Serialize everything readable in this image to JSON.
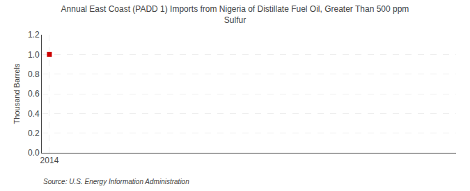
{
  "chart_data": {
    "type": "scatter",
    "title": "Annual East Coast (PADD 1) Imports from Nigeria of Distillate Fuel Oil, Greater Than 500 ppm\nSulfur",
    "ylabel": "Thousand Barrels",
    "source": "Source: U.S. Energy Information Administration",
    "x": [
      2014
    ],
    "values": [
      1.0
    ],
    "color": "#cc0000",
    "marker": "square",
    "xlim": [
      2013.7,
      2030.0
    ],
    "ylim": [
      0.0,
      1.2
    ],
    "xticks": [
      2014
    ],
    "yticks": [
      {
        "value": 0.0,
        "label": "0.0"
      },
      0.2,
      0.4,
      0.6,
      0.8,
      {
        "value": 1.0,
        "label": "1.0"
      },
      1.2
    ],
    "grid": true
  }
}
